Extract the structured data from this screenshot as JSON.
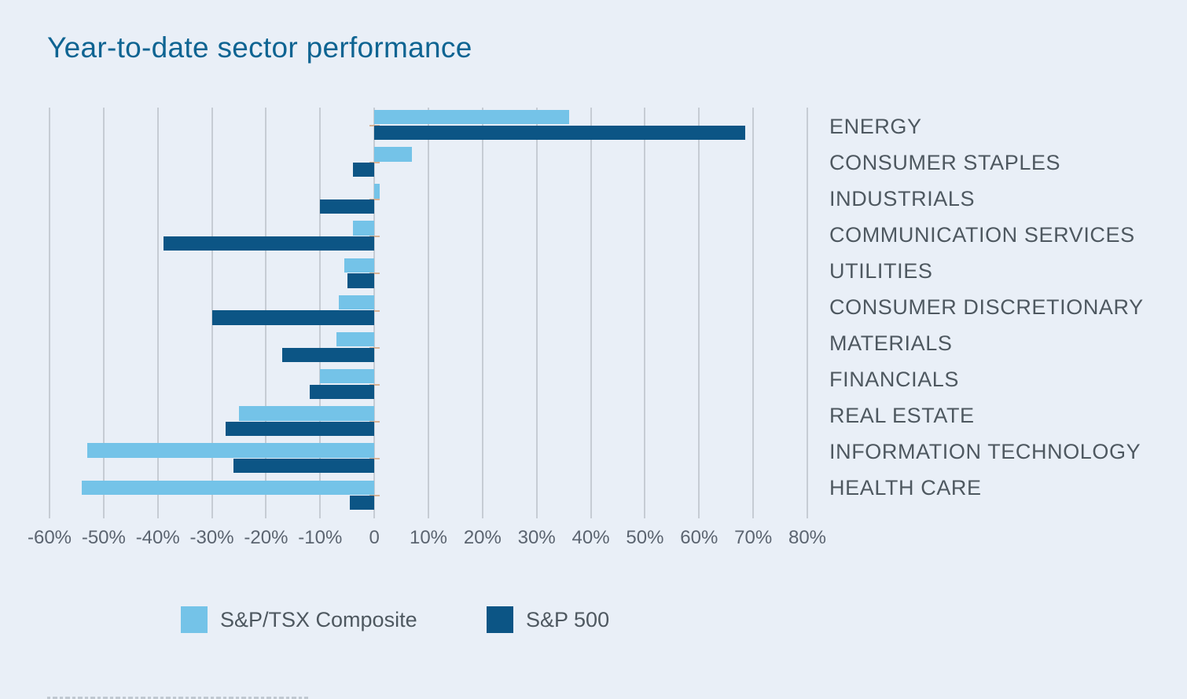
{
  "title": "Year-to-date sector performance",
  "colors": {
    "background": "#E9EFF7",
    "title": "#0E6492",
    "gridline": "#C6CCD4",
    "axis_label": "#5B6470",
    "category_label": "#4E5860",
    "category_tick": "#D8B294",
    "series_light": "#74C3E8",
    "series_dark": "#0C5585"
  },
  "chart_data": {
    "type": "bar",
    "orientation": "horizontal",
    "title": "Year-to-date sector performance",
    "categories": [
      "ENERGY",
      "CONSUMER STAPLES",
      "INDUSTRIALS",
      "COMMUNICATION SERVICES",
      "UTILITIES",
      "CONSUMER DISCRETIONARY",
      "MATERIALS",
      "FINANCIALS",
      "REAL ESTATE",
      "INFORMATION TECHNOLOGY",
      "HEALTH CARE"
    ],
    "series": [
      {
        "name": "S&P/TSX Composite",
        "color": "#74C3E8",
        "values": [
          36,
          7,
          1,
          -4,
          -5.5,
          -6.5,
          -7,
          -10,
          -25,
          -53,
          -54
        ]
      },
      {
        "name": "S&P 500",
        "color": "#0C5585",
        "values": [
          68.5,
          -4,
          -10,
          -39,
          -5,
          -30,
          -17,
          -12,
          -27.5,
          -26,
          -4.5
        ]
      }
    ],
    "xlabel": "",
    "ylabel": "",
    "xlim": [
      -60,
      80
    ],
    "x_tick_labels": [
      "-60%",
      "-50%",
      "-40%",
      "-30%",
      "-20%",
      "-10%",
      "0",
      "10%",
      "20%",
      "30%",
      "40%",
      "50%",
      "60%",
      "70%",
      "80%"
    ],
    "grid": true,
    "legend_position": "bottom",
    "unit": "percent"
  },
  "legend": {
    "items": [
      {
        "label": "S&P/TSX Composite"
      },
      {
        "label": "S&P 500"
      }
    ]
  }
}
